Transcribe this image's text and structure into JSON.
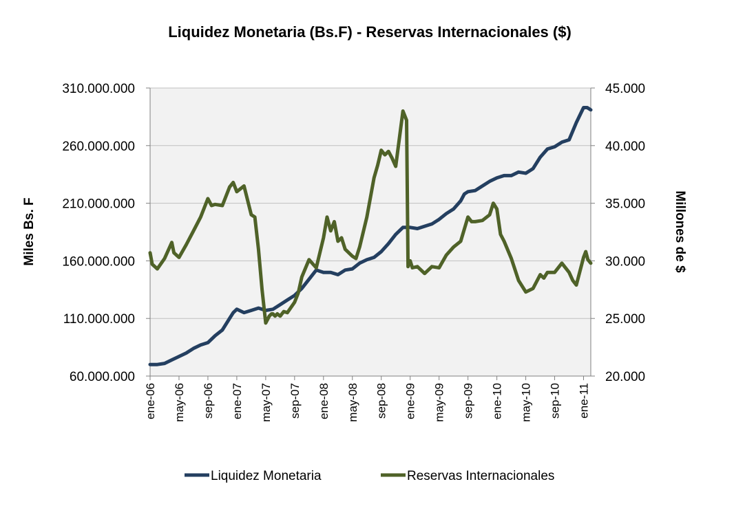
{
  "chart_data": {
    "type": "line",
    "title": "Liquidez Monetaria (Bs.F)  - Reservas Internacionales ($)",
    "ylabel_left": "Miles Bs. F",
    "ylabel_right": "Millones de $",
    "ylim_left": [
      60000000,
      310000000
    ],
    "ylim_right": [
      20000,
      45000
    ],
    "yticks_left": [
      "60.000.000",
      "110.000.000",
      "160.000.000",
      "210.000.000",
      "260.000.000",
      "310.000.000"
    ],
    "yticks_right": [
      "20.000",
      "25.000",
      "30.000",
      "35.000",
      "40.000",
      "45.000"
    ],
    "grid": true,
    "legend_position": "bottom",
    "x_tick_labels": [
      "ene-06",
      "may-06",
      "sep-06",
      "ene-07",
      "may-07",
      "sep-07",
      "ene-08",
      "may-08",
      "sep-08",
      "ene-09",
      "may-09",
      "sep-09",
      "ene-10",
      "may-10",
      "sep-10",
      "ene-11"
    ],
    "x_range_months": [
      0,
      61
    ],
    "series": [
      {
        "name": "Liquidez Monetaria",
        "axis": "left",
        "color": "#243F60",
        "x": [
          0,
          1,
          2,
          3,
          4,
          5,
          6,
          7,
          8,
          9,
          10,
          11,
          11.5,
          12,
          13,
          14,
          15,
          16,
          17,
          18,
          19,
          20,
          21,
          22,
          23,
          24,
          25,
          26,
          27,
          28,
          29,
          30,
          31,
          32,
          33,
          34,
          35,
          36,
          37,
          38,
          39,
          40,
          41,
          42,
          43,
          43.5,
          44,
          45,
          46,
          47,
          48,
          49,
          50,
          51,
          52,
          53,
          54,
          55,
          56,
          57,
          58,
          59,
          60,
          60.5,
          61
        ],
        "values": [
          70000000,
          70000000,
          71000000,
          74000000,
          77000000,
          80000000,
          84000000,
          87000000,
          89000000,
          95000000,
          100000000,
          110000000,
          115000000,
          118000000,
          115000000,
          117000000,
          119000000,
          117000000,
          118000000,
          122000000,
          126000000,
          130000000,
          136000000,
          144000000,
          152000000,
          150000000,
          150000000,
          148000000,
          152000000,
          153000000,
          158000000,
          161000000,
          163000000,
          168000000,
          175000000,
          183000000,
          189000000,
          189000000,
          188000000,
          190000000,
          192000000,
          196000000,
          201000000,
          205000000,
          212000000,
          218000000,
          220000000,
          221000000,
          225000000,
          229000000,
          232000000,
          234000000,
          234000000,
          237000000,
          236000000,
          240000000,
          250000000,
          257000000,
          259000000,
          263000000,
          265000000,
          280000000,
          293000000,
          293000000,
          291000000
        ]
      },
      {
        "name": "Reservas Internacionales",
        "axis": "right",
        "color": "#4F6228",
        "x": [
          0,
          0.3,
          1,
          2,
          3,
          3.3,
          4,
          5,
          6,
          7,
          8,
          8.5,
          9,
          10,
          11,
          11.5,
          12,
          13,
          14,
          14.5,
          15,
          15.5,
          16,
          16.5,
          16.8,
          17,
          17.3,
          17.6,
          18,
          18.5,
          19,
          20,
          20.5,
          21,
          22,
          23,
          24,
          24.5,
          25,
          25.5,
          26,
          26.5,
          27,
          28,
          28.5,
          29,
          30,
          31,
          31.5,
          32,
          32.5,
          33,
          33.5,
          34,
          35,
          35.5,
          35.7,
          36,
          36.3,
          37,
          38,
          39,
          40,
          41,
          42,
          43,
          44,
          44.5,
          45,
          46,
          47,
          47.5,
          48,
          48.5,
          49,
          50,
          51,
          52,
          53,
          54,
          54.5,
          55,
          56,
          57,
          58,
          58.5,
          59,
          60,
          60.3,
          60.6,
          61
        ],
        "values": [
          30700,
          29700,
          29300,
          30200,
          31600,
          30700,
          30300,
          31400,
          32600,
          33800,
          35400,
          34800,
          34900,
          34800,
          36400,
          36800,
          36000,
          36500,
          34000,
          33800,
          31000,
          27500,
          24600,
          25200,
          25400,
          25400,
          25200,
          25400,
          25200,
          25600,
          25500,
          26400,
          27200,
          28600,
          30100,
          29400,
          32000,
          33800,
          32600,
          33400,
          31700,
          32000,
          31000,
          30400,
          30200,
          31200,
          33800,
          37200,
          38300,
          39600,
          39200,
          39500,
          38900,
          38200,
          43000,
          42200,
          29500,
          30000,
          29400,
          29500,
          28900,
          29500,
          29400,
          30500,
          31200,
          31700,
          33800,
          33400,
          33400,
          33500,
          34000,
          35000,
          34500,
          32300,
          31700,
          30200,
          28300,
          27300,
          27600,
          28800,
          28500,
          29000,
          29000,
          29800,
          29000,
          28300,
          27900,
          30300,
          30800,
          30100,
          29800
        ]
      }
    ]
  }
}
